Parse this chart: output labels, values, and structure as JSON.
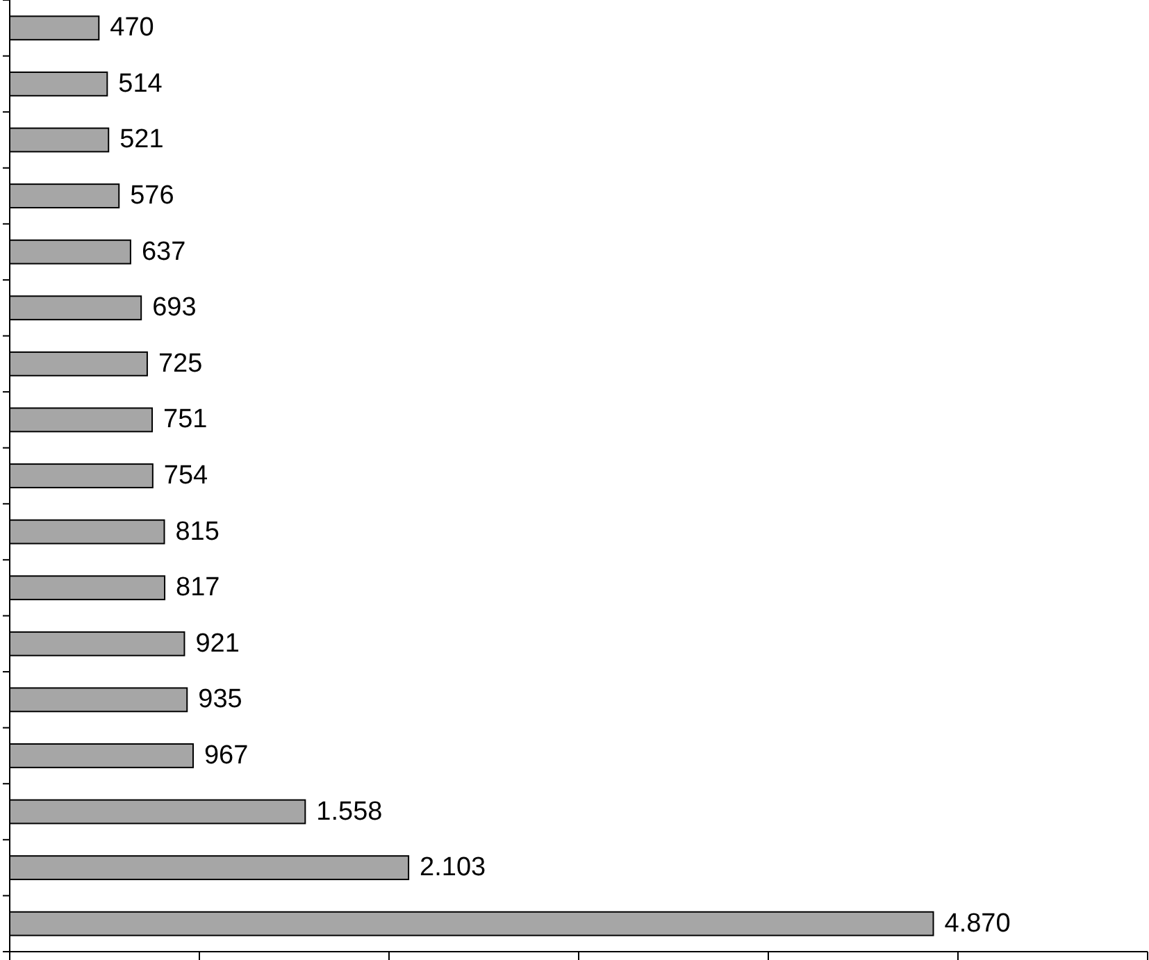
{
  "chart_data": {
    "type": "bar",
    "orientation": "horizontal",
    "categories": [
      null,
      null,
      null,
      null,
      null,
      null,
      null,
      null,
      null,
      null,
      null,
      null,
      null,
      null,
      null,
      null,
      null
    ],
    "values": [
      470,
      514,
      521,
      576,
      637,
      693,
      725,
      751,
      754,
      815,
      817,
      921,
      935,
      967,
      1558,
      2103,
      4870
    ],
    "value_labels": [
      "470",
      "514",
      "521",
      "576",
      "637",
      "693",
      "725",
      "751",
      "754",
      "815",
      "817",
      "921",
      "935",
      "967",
      "1.558",
      "2.103",
      "4.870"
    ],
    "color": "#a6a6a6",
    "xlim": [
      0,
      6000
    ],
    "xticks": [
      {
        "value": 0,
        "label": null
      },
      {
        "value": 1000,
        "label": null
      },
      {
        "value": 2000,
        "label": null
      },
      {
        "value": 3000,
        "label": null
      },
      {
        "value": 4000,
        "label": null
      },
      {
        "value": 5000,
        "label": null
      },
      {
        "value": 6000,
        "label": null
      }
    ],
    "grid": false
  }
}
